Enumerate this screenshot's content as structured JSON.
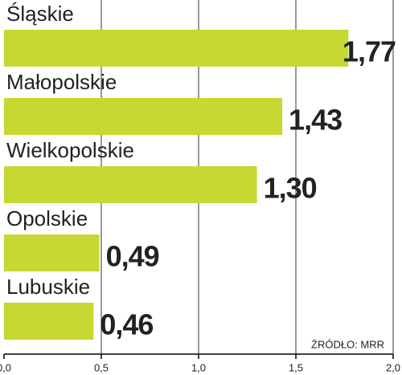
{
  "chart_data": {
    "type": "barh",
    "categories": [
      "Śląskie",
      "Małopolskie",
      "Wielkopolskie",
      "Opolskie",
      "Lubuskie"
    ],
    "values": [
      1.77,
      1.43,
      1.3,
      0.49,
      0.46
    ],
    "value_labels": [
      "1,77",
      "1,43",
      "1,30",
      "0,49",
      "0,46"
    ],
    "color": "#c6d831",
    "xlim": [
      0,
      2
    ],
    "xticks": [
      {
        "value": 0,
        "label": "0,0"
      },
      {
        "value": 0.5,
        "label": "0,5"
      },
      {
        "value": 1,
        "label": "1,0"
      },
      {
        "value": 1.5,
        "label": "1,5"
      },
      {
        "value": 2,
        "label": "2,0"
      }
    ],
    "grid": true,
    "source": "ŹRÓDŁO: MRR"
  }
}
